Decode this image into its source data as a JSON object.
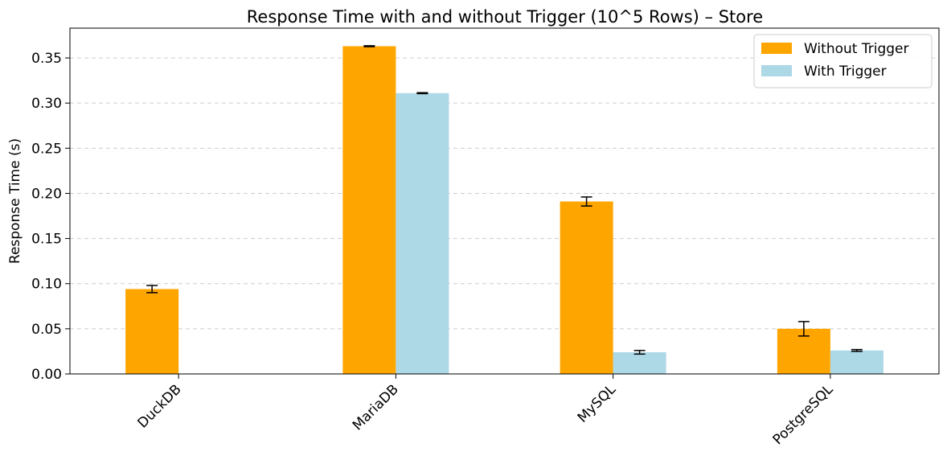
{
  "chart_data": {
    "type": "bar",
    "title": "Response Time with and without Trigger (10^5 Rows) – Store",
    "xlabel": "",
    "ylabel": "Response Time (s)",
    "ylim": [
      0,
      0.383
    ],
    "yticks": [
      "0.00",
      "0.05",
      "0.10",
      "0.15",
      "0.20",
      "0.25",
      "0.30",
      "0.35"
    ],
    "ytick_values": [
      0,
      0.05,
      0.1,
      0.15,
      0.2,
      0.25,
      0.3,
      0.35
    ],
    "grid": "y-dashed",
    "legend_position": "top-right",
    "categories": [
      "DuckDB",
      "MariaDB",
      "MySQL",
      "PostgreSQL"
    ],
    "series": [
      {
        "name": "Without Trigger",
        "color": "#FFA500",
        "values": [
          0.094,
          0.363,
          0.191,
          0.05
        ],
        "errors": [
          0.004,
          0.0005,
          0.005,
          0.008
        ]
      },
      {
        "name": "With Trigger",
        "color": "#ADD8E6",
        "values": [
          0,
          0.311,
          0.024,
          0.026
        ],
        "errors": [
          0,
          0.0005,
          0.002,
          0.001
        ]
      }
    ]
  }
}
